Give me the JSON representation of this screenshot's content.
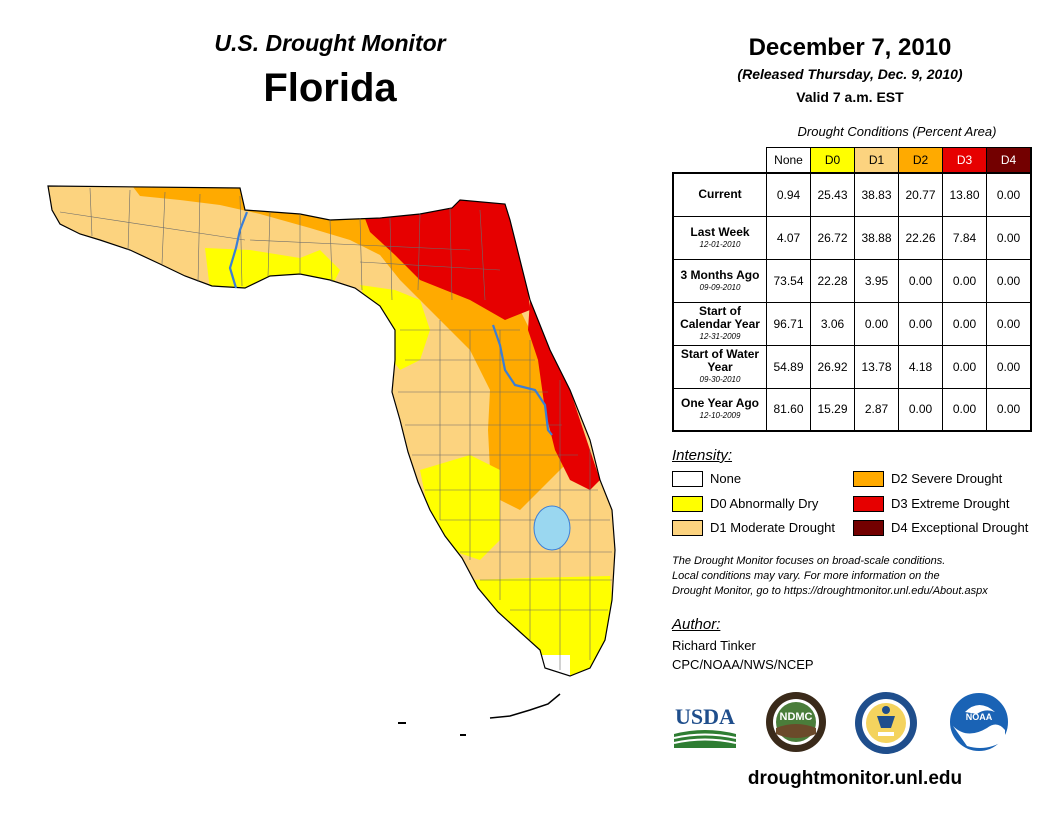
{
  "header": {
    "subtitle": "U.S. Drought Monitor",
    "state": "Florida"
  },
  "release": {
    "date": "December 7, 2010",
    "released": "(Released Thursday, Dec. 9, 2010)",
    "valid": "Valid 7 a.m. EST"
  },
  "table": {
    "caption": "Drought Conditions (Percent Area)",
    "columns": [
      "None",
      "D0",
      "D1",
      "D2",
      "D3",
      "D4"
    ],
    "rows": [
      {
        "label": "Current",
        "date": "",
        "values": [
          "0.94",
          "25.43",
          "38.83",
          "20.77",
          "13.80",
          "0.00"
        ]
      },
      {
        "label": "Last Week",
        "date": "12-01-2010",
        "values": [
          "4.07",
          "26.72",
          "38.88",
          "22.26",
          "7.84",
          "0.00"
        ]
      },
      {
        "label": "3 Months Ago",
        "date": "09-09-2010",
        "values": [
          "73.54",
          "22.28",
          "3.95",
          "0.00",
          "0.00",
          "0.00"
        ]
      },
      {
        "label": "Start of Calendar Year",
        "date": "12-31-2009",
        "values": [
          "96.71",
          "3.06",
          "0.00",
          "0.00",
          "0.00",
          "0.00"
        ]
      },
      {
        "label": "Start of Water Year",
        "date": "09-30-2010",
        "values": [
          "54.89",
          "26.92",
          "13.78",
          "4.18",
          "0.00",
          "0.00"
        ]
      },
      {
        "label": "One Year Ago",
        "date": "12-10-2009",
        "values": [
          "81.60",
          "15.29",
          "2.87",
          "0.00",
          "0.00",
          "0.00"
        ]
      }
    ]
  },
  "legend": {
    "title": "Intensity:",
    "items": [
      {
        "label": "None",
        "color": "#ffffff"
      },
      {
        "label": "D0 Abnormally Dry",
        "color": "#ffff00"
      },
      {
        "label": "D1 Moderate Drought",
        "color": "#fcd37f"
      },
      {
        "label": "D2 Severe Drought",
        "color": "#ffaa00"
      },
      {
        "label": "D3 Extreme Drought",
        "color": "#e60000"
      },
      {
        "label": "D4 Exceptional Drought",
        "color": "#730000"
      }
    ]
  },
  "note": {
    "line1": "The Drought Monitor focuses on broad-scale conditions.",
    "line2": "Local conditions may vary. For more information on the",
    "line3": "Drought Monitor, go to https://droughtmonitor.unl.edu/About.aspx"
  },
  "author": {
    "title": "Author:",
    "name": "Richard Tinker",
    "org": "CPC/NOAA/NWS/NCEP"
  },
  "logos": {
    "usda": "USDA",
    "ndmc": "NDMC",
    "noaa": "NOAA"
  },
  "url": "droughtmonitor.unl.edu",
  "colors": {
    "none": "#ffffff",
    "d0": "#ffff00",
    "d1": "#fcd37f",
    "d2": "#ffaa00",
    "d3": "#e60000",
    "d4": "#730000",
    "water": "#9ad7f0",
    "river": "#3b7ed6"
  }
}
